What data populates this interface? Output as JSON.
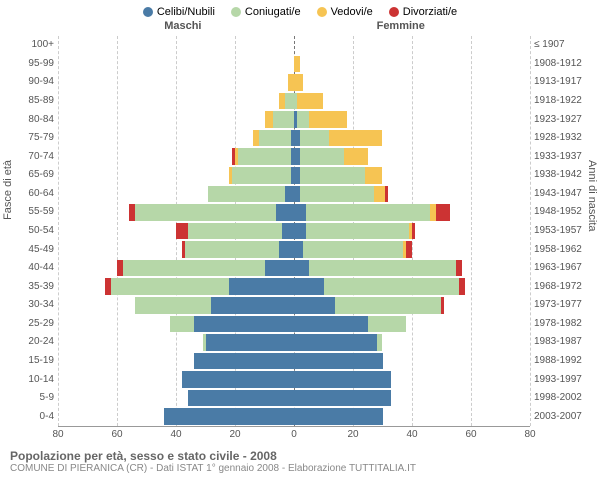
{
  "legend": [
    {
      "label": "Celibi/Nubili",
      "color": "#4a7ba6"
    },
    {
      "label": "Coniugati/e",
      "color": "#b6d7a8"
    },
    {
      "label": "Vedovi/e",
      "color": "#f6c453"
    },
    {
      "label": "Divorziati/e",
      "color": "#cc3333"
    }
  ],
  "colors": {
    "celibi": "#4a7ba6",
    "coniugati": "#b6d7a8",
    "vedovi": "#f6c453",
    "divorziati": "#cc3333",
    "grid": "#cccccc",
    "center": "#777777",
    "text": "#555555",
    "bg": "#ffffff"
  },
  "headers": {
    "male": "Maschi",
    "female": "Femmine"
  },
  "axis": {
    "left_title": "Fasce di età",
    "right_title": "Anni di nascita",
    "xticks": [
      80,
      60,
      40,
      20,
      0,
      20,
      40,
      60,
      80
    ],
    "xmax": 80
  },
  "title": "Popolazione per età, sesso e stato civile - 2008",
  "subtitle": "COMUNE DI PIERANICA (CR) - Dati ISTAT 1° gennaio 2008 - Elaborazione TUTTITALIA.IT",
  "rows": [
    {
      "age": "100+",
      "birth": "≤ 1907",
      "m": [
        0,
        0,
        0,
        0
      ],
      "f": [
        0,
        0,
        0,
        0
      ]
    },
    {
      "age": "95-99",
      "birth": "1908-1912",
      "m": [
        0,
        0,
        0,
        0
      ],
      "f": [
        0,
        0,
        2,
        0
      ]
    },
    {
      "age": "90-94",
      "birth": "1913-1917",
      "m": [
        0,
        0,
        2,
        0
      ],
      "f": [
        0,
        0,
        3,
        0
      ]
    },
    {
      "age": "85-89",
      "birth": "1918-1922",
      "m": [
        0,
        3,
        2,
        0
      ],
      "f": [
        0,
        1,
        9,
        0
      ]
    },
    {
      "age": "80-84",
      "birth": "1923-1927",
      "m": [
        0,
        7,
        3,
        0
      ],
      "f": [
        1,
        4,
        13,
        0
      ]
    },
    {
      "age": "75-79",
      "birth": "1928-1932",
      "m": [
        1,
        11,
        2,
        0
      ],
      "f": [
        2,
        10,
        18,
        0
      ]
    },
    {
      "age": "70-74",
      "birth": "1933-1937",
      "m": [
        1,
        18,
        1,
        1
      ],
      "f": [
        2,
        15,
        8,
        0
      ]
    },
    {
      "age": "65-69",
      "birth": "1938-1942",
      "m": [
        1,
        20,
        1,
        0
      ],
      "f": [
        2,
        22,
        6,
        0
      ]
    },
    {
      "age": "60-64",
      "birth": "1943-1947",
      "m": [
        3,
        26,
        0,
        0
      ],
      "f": [
        2,
        25,
        4,
        1
      ]
    },
    {
      "age": "55-59",
      "birth": "1948-1952",
      "m": [
        6,
        48,
        0,
        2
      ],
      "f": [
        4,
        42,
        2,
        5
      ]
    },
    {
      "age": "50-54",
      "birth": "1953-1957",
      "m": [
        4,
        32,
        0,
        4
      ],
      "f": [
        4,
        35,
        1,
        1
      ]
    },
    {
      "age": "45-49",
      "birth": "1958-1962",
      "m": [
        5,
        32,
        0,
        1
      ],
      "f": [
        3,
        34,
        1,
        2
      ]
    },
    {
      "age": "40-44",
      "birth": "1963-1967",
      "m": [
        10,
        48,
        0,
        2
      ],
      "f": [
        5,
        50,
        0,
        2
      ]
    },
    {
      "age": "35-39",
      "birth": "1968-1972",
      "m": [
        22,
        40,
        0,
        2
      ],
      "f": [
        10,
        46,
        0,
        2
      ]
    },
    {
      "age": "30-34",
      "birth": "1973-1977",
      "m": [
        28,
        26,
        0,
        0
      ],
      "f": [
        14,
        36,
        0,
        1
      ]
    },
    {
      "age": "25-29",
      "birth": "1978-1982",
      "m": [
        34,
        8,
        0,
        0
      ],
      "f": [
        25,
        13,
        0,
        0
      ]
    },
    {
      "age": "20-24",
      "birth": "1983-1987",
      "m": [
        30,
        1,
        0,
        0
      ],
      "f": [
        28,
        2,
        0,
        0
      ]
    },
    {
      "age": "15-19",
      "birth": "1988-1992",
      "m": [
        34,
        0,
        0,
        0
      ],
      "f": [
        30,
        0,
        0,
        0
      ]
    },
    {
      "age": "10-14",
      "birth": "1993-1997",
      "m": [
        38,
        0,
        0,
        0
      ],
      "f": [
        33,
        0,
        0,
        0
      ]
    },
    {
      "age": "5-9",
      "birth": "1998-2002",
      "m": [
        36,
        0,
        0,
        0
      ],
      "f": [
        33,
        0,
        0,
        0
      ]
    },
    {
      "age": "0-4",
      "birth": "2003-2007",
      "m": [
        44,
        0,
        0,
        0
      ],
      "f": [
        30,
        0,
        0,
        0
      ]
    }
  ]
}
